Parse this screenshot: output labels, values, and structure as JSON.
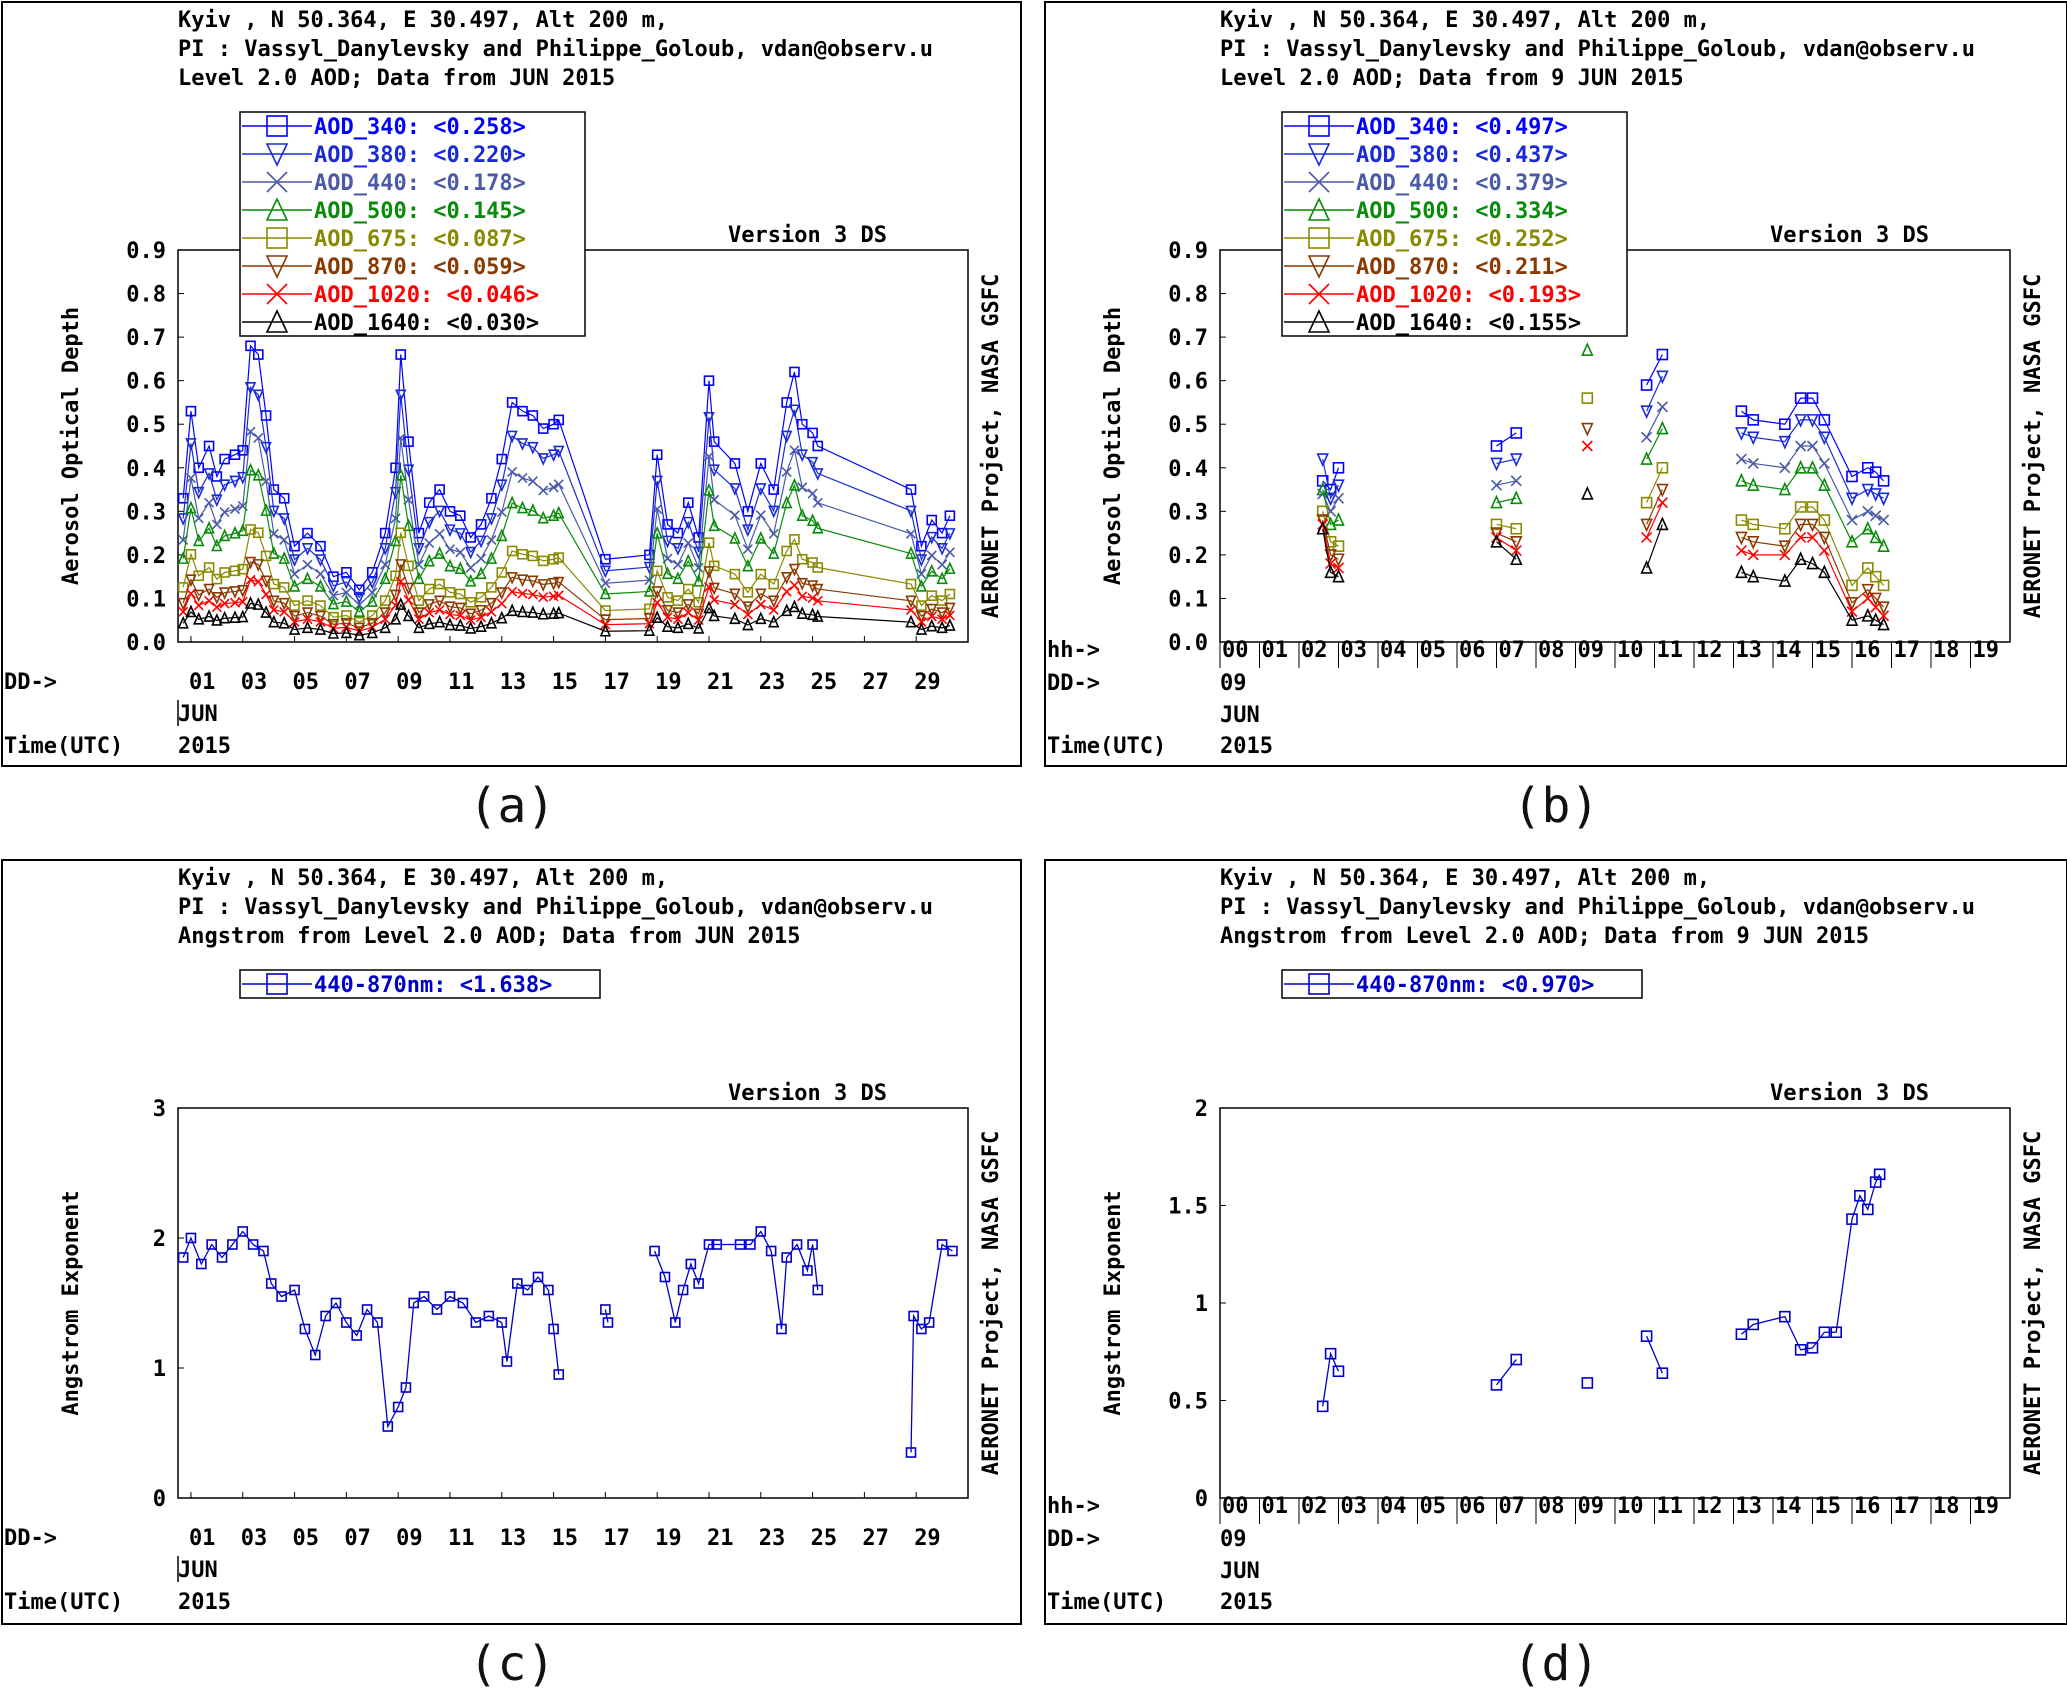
{
  "colors": {
    "AOD_340": "#0000ff",
    "AOD_380": "#1a2bd6",
    "AOD_440": "#4a5aa8",
    "AOD_500": "#0a8a0a",
    "AOD_675": "#8a8a00",
    "AOD_870": "#8a3a00",
    "AOD_1020": "#ff0000",
    "AOD_1640": "#000000",
    "angstrom": "#0000c8"
  },
  "panels": [
    {
      "caption": "(a)",
      "header": [
        "Kyiv , N 50.364, E  30.497, Alt 200 m,",
        "PI : Vassyl_Danylevsky and Philippe_Goloub, vdan@observ.u",
        "Level 2.0 AOD; Data from JUN 2015"
      ],
      "version": "Version 3 DS",
      "side_label": "AERONET Project, NASA GSFC",
      "ylabel": "Aerosol Optical Depth",
      "row_labels": {
        "dd": "DD->",
        "time": "Time(UTC)",
        "month": "JUN",
        "year": "2015"
      },
      "legend": [
        {
          "key": "AOD_340",
          "text": "AOD_340: <0.258>",
          "marker": "square"
        },
        {
          "key": "AOD_380",
          "text": "AOD_380: <0.220>",
          "marker": "tri-down"
        },
        {
          "key": "AOD_440",
          "text": "AOD_440: <0.178>",
          "marker": "x"
        },
        {
          "key": "AOD_500",
          "text": "AOD_500: <0.145>",
          "marker": "tri-up"
        },
        {
          "key": "AOD_675",
          "text": "AOD_675: <0.087>",
          "marker": "square"
        },
        {
          "key": "AOD_870",
          "text": "AOD_870: <0.059>",
          "marker": "tri-down"
        },
        {
          "key": "AOD_1020",
          "text": "AOD_1020: <0.046>",
          "marker": "x"
        },
        {
          "key": "AOD_1640",
          "text": "AOD_1640: <0.030>",
          "marker": "tri-up"
        }
      ]
    },
    {
      "caption": "(b)",
      "header": [
        "Kyiv , N 50.364, E  30.497, Alt 200 m,",
        "PI : Vassyl_Danylevsky and Philippe_Goloub, vdan@observ.u",
        "Level 2.0 AOD; Data from 9 JUN 2015"
      ],
      "version": "Version 3 DS",
      "side_label": "AERONET Project, NASA GSFC",
      "ylabel": "Aerosol Optical Depth",
      "row_labels": {
        "hh": "hh->",
        "dd": "DD->",
        "time": "Time(UTC)",
        "day": "09",
        "month": "JUN",
        "year": "2015"
      },
      "legend": [
        {
          "key": "AOD_340",
          "text": "AOD_340: <0.497>",
          "marker": "square"
        },
        {
          "key": "AOD_380",
          "text": "AOD_380: <0.437>",
          "marker": "tri-down"
        },
        {
          "key": "AOD_440",
          "text": "AOD_440: <0.379>",
          "marker": "x"
        },
        {
          "key": "AOD_500",
          "text": "AOD_500: <0.334>",
          "marker": "tri-up"
        },
        {
          "key": "AOD_675",
          "text": "AOD_675: <0.252>",
          "marker": "square"
        },
        {
          "key": "AOD_870",
          "text": "AOD_870: <0.211>",
          "marker": "tri-down"
        },
        {
          "key": "AOD_1020",
          "text": "AOD_1020: <0.193>",
          "marker": "x"
        },
        {
          "key": "AOD_1640",
          "text": "AOD_1640: <0.155>",
          "marker": "tri-up"
        }
      ]
    },
    {
      "caption": "(c)",
      "header": [
        "Kyiv , N 50.364, E  30.497, Alt 200 m,",
        "PI : Vassyl_Danylevsky and Philippe_Goloub, vdan@observ.u",
        "Angstrom from Level 2.0 AOD; Data from JUN 2015"
      ],
      "version": "Version 3 DS",
      "side_label": "AERONET Project, NASA GSFC",
      "ylabel": "Angstrom Exponent",
      "row_labels": {
        "dd": "DD->",
        "time": "Time(UTC)",
        "month": "JUN",
        "year": "2015"
      },
      "legend": [
        {
          "key": "angstrom",
          "text": "440-870nm: <1.638>",
          "marker": "square"
        }
      ]
    },
    {
      "caption": "(d)",
      "header": [
        "Kyiv , N 50.364, E  30.497, Alt 200 m,",
        "PI : Vassyl_Danylevsky and Philippe_Goloub, vdan@observ.u",
        "Angstrom from Level 2.0 AOD; Data from 9 JUN 2015"
      ],
      "version": "Version 3 DS",
      "side_label": "AERONET Project, NASA GSFC",
      "ylabel": "Angstrom Exponent",
      "row_labels": {
        "hh": "hh->",
        "dd": "DD->",
        "time": "Time(UTC)",
        "day": "09",
        "month": "JUN",
        "year": "2015"
      },
      "legend": [
        {
          "key": "angstrom",
          "text": "440-870nm: <0.970>",
          "marker": "square"
        }
      ]
    }
  ],
  "chart_data": [
    {
      "type": "line",
      "panel": "(a)",
      "ylabel": "Aerosol Optical Depth",
      "ylim": [
        0,
        0.9
      ],
      "yticks": [
        "0.0",
        "0.1",
        "0.2",
        "0.3",
        "0.4",
        "0.5",
        "0.6",
        "0.7",
        "0.8",
        "0.9"
      ],
      "xlim": [
        0.5,
        31
      ],
      "xtick_days": [
        "01",
        "03",
        "05",
        "07",
        "09",
        "11",
        "13",
        "15",
        "17",
        "19",
        "21",
        "23",
        "25",
        "27",
        "29"
      ],
      "series_scale": {
        "AOD_340": 1.0,
        "AOD_380": 0.86,
        "AOD_440": 0.71,
        "AOD_500": 0.58,
        "AOD_675": 0.38,
        "AOD_870": 0.27,
        "AOD_1020": 0.21,
        "AOD_1640": 0.13
      },
      "daily_aod340": [
        {
          "day": 0.7,
          "v": 0.33
        },
        {
          "day": 1.0,
          "v": 0.53
        },
        {
          "day": 1.3,
          "v": 0.4
        },
        {
          "day": 1.7,
          "v": 0.45
        },
        {
          "day": 2.0,
          "v": 0.38
        },
        {
          "day": 2.3,
          "v": 0.42
        },
        {
          "day": 2.7,
          "v": 0.43
        },
        {
          "day": 3.0,
          "v": 0.44
        },
        {
          "day": 3.3,
          "v": 0.68
        },
        {
          "day": 3.6,
          "v": 0.66
        },
        {
          "day": 3.9,
          "v": 0.52
        },
        {
          "day": 4.2,
          "v": 0.35
        },
        {
          "day": 4.6,
          "v": 0.33
        },
        {
          "day": 5.0,
          "v": 0.22
        },
        {
          "day": 5.5,
          "v": 0.25
        },
        {
          "day": 6.0,
          "v": 0.22
        },
        {
          "day": 6.5,
          "v": 0.15
        },
        {
          "day": 7.0,
          "v": 0.16
        },
        {
          "day": 7.5,
          "v": 0.12
        },
        {
          "day": 8.0,
          "v": 0.16
        },
        {
          "day": 8.5,
          "v": 0.25
        },
        {
          "day": 8.9,
          "v": 0.4
        },
        {
          "day": 9.1,
          "v": 0.66
        },
        {
          "day": 9.4,
          "v": 0.46
        },
        {
          "day": 9.8,
          "v": 0.25
        },
        {
          "day": 10.2,
          "v": 0.32
        },
        {
          "day": 10.6,
          "v": 0.35
        },
        {
          "day": 11.0,
          "v": 0.3
        },
        {
          "day": 11.4,
          "v": 0.29
        },
        {
          "day": 11.8,
          "v": 0.24
        },
        {
          "day": 12.2,
          "v": 0.27
        },
        {
          "day": 12.6,
          "v": 0.33
        },
        {
          "day": 13.0,
          "v": 0.42
        },
        {
          "day": 13.4,
          "v": 0.55
        },
        {
          "day": 13.8,
          "v": 0.53
        },
        {
          "day": 14.2,
          "v": 0.52
        },
        {
          "day": 14.6,
          "v": 0.49
        },
        {
          "day": 15.0,
          "v": 0.5
        },
        {
          "day": 15.2,
          "v": 0.51
        },
        {
          "day": 17.0,
          "v": 0.19
        },
        {
          "day": 18.7,
          "v": 0.2
        },
        {
          "day": 19.0,
          "v": 0.43
        },
        {
          "day": 19.4,
          "v": 0.27
        },
        {
          "day": 19.8,
          "v": 0.25
        },
        {
          "day": 20.2,
          "v": 0.32
        },
        {
          "day": 20.6,
          "v": 0.24
        },
        {
          "day": 21.0,
          "v": 0.6
        },
        {
          "day": 21.2,
          "v": 0.46
        },
        {
          "day": 22.0,
          "v": 0.41
        },
        {
          "day": 22.5,
          "v": 0.3
        },
        {
          "day": 23.0,
          "v": 0.41
        },
        {
          "day": 23.5,
          "v": 0.35
        },
        {
          "day": 24.0,
          "v": 0.55
        },
        {
          "day": 24.3,
          "v": 0.62
        },
        {
          "day": 24.6,
          "v": 0.5
        },
        {
          "day": 25.0,
          "v": 0.48
        },
        {
          "day": 25.2,
          "v": 0.45
        },
        {
          "day": 28.8,
          "v": 0.35
        },
        {
          "day": 29.2,
          "v": 0.22
        },
        {
          "day": 29.6,
          "v": 0.28
        },
        {
          "day": 30.0,
          "v": 0.25
        },
        {
          "day": 30.3,
          "v": 0.29
        }
      ]
    },
    {
      "type": "scatter",
      "panel": "(b)",
      "ylabel": "Aerosol Optical Depth",
      "ylim": [
        0,
        0.9
      ],
      "yticks": [
        "0.0",
        "0.1",
        "0.2",
        "0.3",
        "0.4",
        "0.5",
        "0.6",
        "0.7",
        "0.8",
        "0.9"
      ],
      "xlim": [
        0,
        20
      ],
      "xtick_hours": [
        "00",
        "01",
        "02",
        "03",
        "04",
        "05",
        "06",
        "07",
        "08",
        "09",
        "10",
        "11",
        "12",
        "13",
        "14",
        "15",
        "16",
        "17",
        "18",
        "19"
      ],
      "hours": [
        2.6,
        2.8,
        3.0,
        7.0,
        7.5,
        9.3,
        10.8,
        11.2,
        13.2,
        13.5,
        14.3,
        14.7,
        15.0,
        15.3,
        16.0,
        16.4,
        16.6,
        16.8
      ],
      "series": [
        {
          "name": "AOD_340",
          "values": [
            0.37,
            0.35,
            0.4,
            0.45,
            0.48,
            null,
            0.59,
            0.66,
            0.53,
            0.51,
            0.5,
            0.56,
            0.56,
            0.51,
            0.38,
            0.4,
            0.39,
            0.37
          ]
        },
        {
          "name": "AOD_380",
          "values": [
            0.42,
            0.33,
            0.36,
            0.41,
            0.42,
            null,
            0.53,
            0.61,
            0.48,
            0.47,
            0.46,
            0.51,
            0.51,
            0.47,
            0.33,
            0.35,
            0.34,
            0.33
          ]
        },
        {
          "name": "AOD_440",
          "values": [
            0.34,
            0.3,
            0.33,
            0.36,
            0.37,
            null,
            0.47,
            0.54,
            0.42,
            0.41,
            0.4,
            0.45,
            0.45,
            0.41,
            0.28,
            0.3,
            0.29,
            0.28
          ]
        },
        {
          "name": "AOD_500",
          "values": [
            0.35,
            0.27,
            0.28,
            0.32,
            0.33,
            0.67,
            0.42,
            0.49,
            0.37,
            0.36,
            0.35,
            0.4,
            0.4,
            0.36,
            0.23,
            0.26,
            0.24,
            0.22
          ]
        },
        {
          "name": "AOD_675",
          "values": [
            0.3,
            0.23,
            0.22,
            0.27,
            0.26,
            0.56,
            0.32,
            0.4,
            0.28,
            0.27,
            0.26,
            0.31,
            0.31,
            0.28,
            0.13,
            0.17,
            0.15,
            0.13
          ]
        },
        {
          "name": "AOD_870",
          "values": [
            0.28,
            0.2,
            0.19,
            0.25,
            0.23,
            0.49,
            0.27,
            0.35,
            0.24,
            0.23,
            0.22,
            0.27,
            0.27,
            0.24,
            0.09,
            0.12,
            0.1,
            0.08
          ]
        },
        {
          "name": "AOD_1020",
          "values": [
            0.27,
            0.18,
            0.17,
            0.24,
            0.21,
            0.45,
            0.24,
            0.32,
            0.21,
            0.2,
            0.2,
            0.24,
            0.24,
            0.21,
            0.07,
            0.1,
            0.08,
            0.06
          ]
        },
        {
          "name": "AOD_1640",
          "values": [
            0.26,
            0.16,
            0.15,
            0.23,
            0.19,
            0.34,
            0.17,
            0.27,
            0.16,
            0.15,
            0.14,
            0.19,
            0.18,
            0.16,
            0.05,
            0.06,
            0.05,
            0.04
          ]
        }
      ]
    },
    {
      "type": "line",
      "panel": "(c)",
      "ylabel": "Angstrom Exponent",
      "ylim": [
        0,
        3
      ],
      "yticks": [
        "0",
        "1",
        "2",
        "3"
      ],
      "xlim": [
        0.5,
        31
      ],
      "xtick_days": [
        "01",
        "03",
        "05",
        "07",
        "09",
        "11",
        "13",
        "15",
        "17",
        "19",
        "21",
        "23",
        "25",
        "27",
        "29"
      ],
      "daily_angstrom": [
        {
          "day": 0.7,
          "v": 1.85
        },
        {
          "day": 1.0,
          "v": 2.0
        },
        {
          "day": 1.4,
          "v": 1.8
        },
        {
          "day": 1.8,
          "v": 1.95
        },
        {
          "day": 2.2,
          "v": 1.85
        },
        {
          "day": 2.6,
          "v": 1.95
        },
        {
          "day": 3.0,
          "v": 2.05
        },
        {
          "day": 3.4,
          "v": 1.95
        },
        {
          "day": 3.8,
          "v": 1.9
        },
        {
          "day": 4.1,
          "v": 1.65
        },
        {
          "day": 4.5,
          "v": 1.55
        },
        {
          "day": 5.0,
          "v": 1.6
        },
        {
          "day": 5.4,
          "v": 1.3
        },
        {
          "day": 5.8,
          "v": 1.1
        },
        {
          "day": 6.2,
          "v": 1.4
        },
        {
          "day": 6.6,
          "v": 1.5
        },
        {
          "day": 7.0,
          "v": 1.35
        },
        {
          "day": 7.4,
          "v": 1.25
        },
        {
          "day": 7.8,
          "v": 1.45
        },
        {
          "day": 8.2,
          "v": 1.35
        },
        {
          "day": 8.6,
          "v": 0.55
        },
        {
          "day": 9.0,
          "v": 0.7
        },
        {
          "day": 9.3,
          "v": 0.85
        },
        {
          "day": 9.6,
          "v": 1.5
        },
        {
          "day": 10.0,
          "v": 1.55
        },
        {
          "day": 10.5,
          "v": 1.45
        },
        {
          "day": 11.0,
          "v": 1.55
        },
        {
          "day": 11.5,
          "v": 1.5
        },
        {
          "day": 12.0,
          "v": 1.35
        },
        {
          "day": 12.5,
          "v": 1.4
        },
        {
          "day": 13.0,
          "v": 1.35
        },
        {
          "day": 13.2,
          "v": 1.05
        },
        {
          "day": 13.6,
          "v": 1.65
        },
        {
          "day": 14.0,
          "v": 1.6
        },
        {
          "day": 14.4,
          "v": 1.7
        },
        {
          "day": 14.8,
          "v": 1.6
        },
        {
          "day": 15.0,
          "v": 1.3
        },
        {
          "day": 15.2,
          "v": 0.95
        },
        {
          "day": 17.0,
          "v": 1.45
        },
        {
          "day": 17.1,
          "v": 1.35
        },
        {
          "day": 18.9,
          "v": 1.9
        },
        {
          "day": 19.3,
          "v": 1.7
        },
        {
          "day": 19.7,
          "v": 1.35
        },
        {
          "day": 20.0,
          "v": 1.6
        },
        {
          "day": 20.3,
          "v": 1.8
        },
        {
          "day": 20.6,
          "v": 1.65
        },
        {
          "day": 21.0,
          "v": 1.95
        },
        {
          "day": 21.3,
          "v": 1.95
        },
        {
          "day": 22.2,
          "v": 1.95
        },
        {
          "day": 22.6,
          "v": 1.95
        },
        {
          "day": 23.0,
          "v": 2.05
        },
        {
          "day": 23.4,
          "v": 1.9
        },
        {
          "day": 23.8,
          "v": 1.3
        },
        {
          "day": 24.0,
          "v": 1.85
        },
        {
          "day": 24.4,
          "v": 1.95
        },
        {
          "day": 24.8,
          "v": 1.75
        },
        {
          "day": 25.0,
          "v": 1.95
        },
        {
          "day": 25.2,
          "v": 1.6
        },
        {
          "day": 28.8,
          "v": 0.35
        },
        {
          "day": 28.9,
          "v": 1.4
        },
        {
          "day": 29.2,
          "v": 1.3
        },
        {
          "day": 29.5,
          "v": 1.35
        },
        {
          "day": 30.0,
          "v": 1.95
        },
        {
          "day": 30.4,
          "v": 1.9
        }
      ]
    },
    {
      "type": "line",
      "panel": "(d)",
      "ylabel": "Angstrom Exponent",
      "ylim": [
        0,
        2
      ],
      "yticks": [
        "0",
        "0.5",
        "1",
        "1.5",
        "2"
      ],
      "xlim": [
        0,
        20
      ],
      "xtick_hours": [
        "00",
        "01",
        "02",
        "03",
        "04",
        "05",
        "06",
        "07",
        "08",
        "09",
        "10",
        "11",
        "12",
        "13",
        "14",
        "15",
        "16",
        "17",
        "18",
        "19"
      ],
      "points": [
        {
          "h": 2.6,
          "v": 0.47
        },
        {
          "h": 2.8,
          "v": 0.74
        },
        {
          "h": 3.0,
          "v": 0.65
        },
        {
          "h": 7.0,
          "v": 0.58
        },
        {
          "h": 7.5,
          "v": 0.71
        },
        {
          "h": 9.3,
          "v": 0.59
        },
        {
          "h": 10.8,
          "v": 0.83
        },
        {
          "h": 11.2,
          "v": 0.64
        },
        {
          "h": 13.2,
          "v": 0.84
        },
        {
          "h": 13.5,
          "v": 0.89
        },
        {
          "h": 14.3,
          "v": 0.93
        },
        {
          "h": 14.7,
          "v": 0.76
        },
        {
          "h": 15.0,
          "v": 0.77
        },
        {
          "h": 15.3,
          "v": 0.85
        },
        {
          "h": 15.6,
          "v": 0.85
        },
        {
          "h": 16.0,
          "v": 1.43
        },
        {
          "h": 16.2,
          "v": 1.55
        },
        {
          "h": 16.4,
          "v": 1.48
        },
        {
          "h": 16.6,
          "v": 1.62
        },
        {
          "h": 16.7,
          "v": 1.66
        }
      ]
    }
  ]
}
